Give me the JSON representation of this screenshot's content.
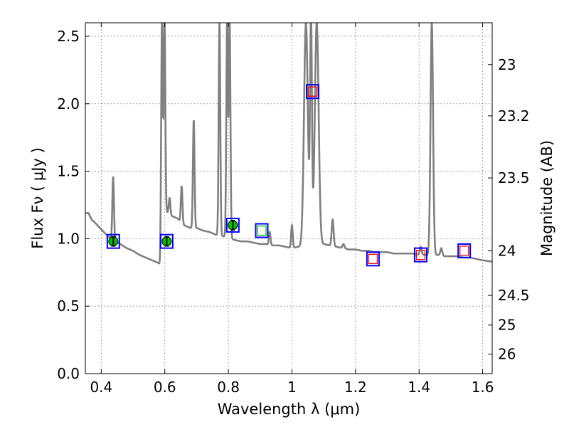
{
  "chart_data": {
    "type": "line",
    "xlabel": "Wavelength  λ (μm)",
    "ylabel": "Flux  Fν  ( μJy )",
    "y2label": "Magnitude (AB)",
    "xlim": [
      0.35,
      1.63
    ],
    "ylim": [
      0.0,
      2.6
    ],
    "grid": true,
    "x_ticks": [
      0.4,
      0.6,
      0.8,
      1.0,
      1.2,
      1.4,
      1.6
    ],
    "x_tick_labels": [
      "0.4",
      "0.6",
      "0.8",
      "1",
      "1.2",
      "1.4",
      "1.6"
    ],
    "y_ticks": [
      0.0,
      0.5,
      1.0,
      1.5,
      2.0,
      2.5
    ],
    "y_tick_labels": [
      "0.0",
      "0.5",
      "1.0",
      "1.5",
      "2.0",
      "2.5"
    ],
    "y2_ticks": [
      {
        "label": "23",
        "flux": 2.29
      },
      {
        "label": "23.2",
        "flux": 1.91
      },
      {
        "label": "23.5",
        "flux": 1.45
      },
      {
        "label": "24",
        "flux": 0.91
      },
      {
        "label": "24.5",
        "flux": 0.58
      },
      {
        "label": "25",
        "flux": 0.36
      },
      {
        "label": "26",
        "flux": 0.145
      }
    ],
    "colors": {
      "model": "#808080",
      "box": "#0000ff",
      "detection": "#00c000",
      "upper": "#ff0000",
      "grid": "#000000"
    },
    "model_spectrum": {
      "continuum": [
        [
          0.35,
          1.19
        ],
        [
          0.36,
          1.19
        ],
        [
          0.37,
          1.14
        ],
        [
          0.38,
          1.12
        ],
        [
          0.4,
          1.07
        ],
        [
          0.42,
          1.02
        ],
        [
          0.44,
          0.99
        ],
        [
          0.46,
          0.96
        ],
        [
          0.48,
          0.93
        ],
        [
          0.5,
          0.91
        ],
        [
          0.52,
          0.88
        ],
        [
          0.54,
          0.86
        ],
        [
          0.56,
          0.84
        ],
        [
          0.58,
          0.82
        ],
        [
          0.59,
          0.79
        ],
        [
          0.6,
          1.21
        ],
        [
          0.62,
          1.17
        ],
        [
          0.64,
          1.15
        ],
        [
          0.66,
          1.1
        ],
        [
          0.68,
          1.08
        ],
        [
          0.7,
          1.08
        ],
        [
          0.72,
          1.06
        ],
        [
          0.74,
          1.05
        ],
        [
          0.76,
          1.03
        ],
        [
          0.78,
          1.02
        ],
        [
          0.8,
          1.01
        ],
        [
          0.82,
          0.99
        ],
        [
          0.84,
          0.98
        ],
        [
          0.86,
          0.98
        ],
        [
          0.88,
          0.97
        ],
        [
          0.9,
          0.96
        ],
        [
          0.92,
          0.96
        ],
        [
          0.94,
          0.95
        ],
        [
          0.96,
          0.95
        ],
        [
          0.98,
          0.94
        ],
        [
          1.0,
          0.93
        ],
        [
          1.02,
          0.94
        ],
        [
          1.04,
          0.95
        ],
        [
          1.06,
          0.96
        ],
        [
          1.08,
          0.96
        ],
        [
          1.1,
          0.96
        ],
        [
          1.12,
          0.95
        ],
        [
          1.14,
          0.94
        ],
        [
          1.16,
          0.93
        ],
        [
          1.18,
          0.92
        ],
        [
          1.2,
          0.92
        ],
        [
          1.22,
          0.91
        ],
        [
          1.24,
          0.91
        ],
        [
          1.26,
          0.9
        ],
        [
          1.28,
          0.9
        ],
        [
          1.3,
          0.9
        ],
        [
          1.32,
          0.89
        ],
        [
          1.34,
          0.89
        ],
        [
          1.36,
          0.89
        ],
        [
          1.38,
          0.89
        ],
        [
          1.4,
          0.88
        ],
        [
          1.42,
          0.88
        ],
        [
          1.44,
          0.88
        ],
        [
          1.46,
          0.88
        ],
        [
          1.48,
          0.87
        ],
        [
          1.5,
          0.87
        ],
        [
          1.52,
          0.87
        ],
        [
          1.54,
          0.86
        ],
        [
          1.56,
          0.86
        ],
        [
          1.58,
          0.85
        ],
        [
          1.6,
          0.84
        ],
        [
          1.63,
          0.83
        ]
      ],
      "emission_lines": [
        {
          "x": 0.4375,
          "peak": 1.46,
          "width": 0.0025
        },
        {
          "x": 0.591,
          "peak": 2.6,
          "width": 0.0025
        },
        {
          "x": 0.599,
          "peak": 2.6,
          "width": 0.0025
        },
        {
          "x": 0.615,
          "peak": 1.3,
          "width": 0.0025
        },
        {
          "x": 0.653,
          "peak": 1.39,
          "width": 0.0025
        },
        {
          "x": 0.691,
          "peak": 1.88,
          "width": 0.0025
        },
        {
          "x": 0.772,
          "peak": 2.6,
          "width": 0.0025
        },
        {
          "x": 0.796,
          "peak": 2.6,
          "width": 0.0025
        },
        {
          "x": 0.804,
          "peak": 2.6,
          "width": 0.0025
        },
        {
          "x": 0.93,
          "peak": 1.05,
          "width": 0.0025
        },
        {
          "x": 1.0,
          "peak": 1.1,
          "width": 0.0025
        },
        {
          "x": 1.044,
          "peak": 2.6,
          "width": 0.006
        },
        {
          "x": 1.06,
          "peak": 2.6,
          "width": 0.003
        },
        {
          "x": 1.078,
          "peak": 2.6,
          "width": 0.006
        },
        {
          "x": 1.128,
          "peak": 1.14,
          "width": 0.003
        },
        {
          "x": 1.162,
          "peak": 0.96,
          "width": 0.003
        },
        {
          "x": 1.405,
          "peak": 0.94,
          "width": 0.003
        },
        {
          "x": 1.44,
          "peak": 2.6,
          "width": 0.004
        },
        {
          "x": 1.47,
          "peak": 0.93,
          "width": 0.003
        }
      ]
    },
    "photometry": [
      {
        "x": 0.438,
        "y": 0.98,
        "kind": "detection",
        "err": 0.035
      },
      {
        "x": 0.606,
        "y": 0.98,
        "kind": "detection",
        "err": 0.035
      },
      {
        "x": 0.814,
        "y": 1.1,
        "kind": "detection",
        "err": 0.035
      },
      {
        "x": 0.905,
        "y": 1.06,
        "kind": "model_green"
      },
      {
        "x": 1.065,
        "y": 2.09,
        "kind": "upper"
      },
      {
        "x": 1.255,
        "y": 0.85,
        "kind": "upper"
      },
      {
        "x": 1.405,
        "y": 0.88,
        "kind": "upper"
      },
      {
        "x": 1.542,
        "y": 0.91,
        "kind": "upper"
      }
    ]
  }
}
